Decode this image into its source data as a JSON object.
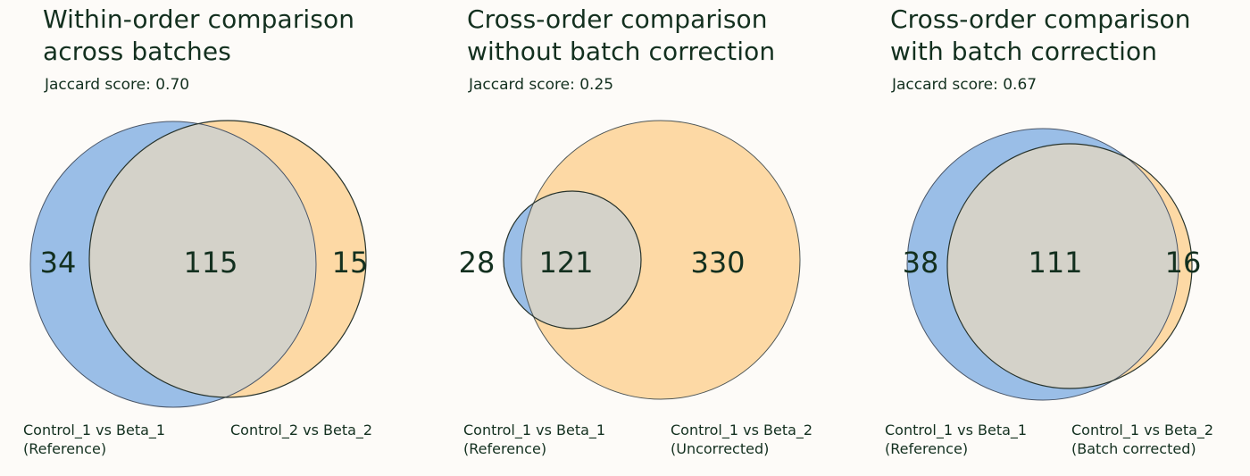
{
  "colors": {
    "reference": "#9abee7",
    "comparison": "#fdd9a5",
    "overlap": "#d4d2c9",
    "text": "#13301f",
    "background": "#fdfbf8"
  },
  "panels": [
    {
      "title_line1": "Within-order comparison",
      "title_line2": "across batches",
      "jaccard": "Jaccard score: 0.70",
      "left_only": "34",
      "overlap": "115",
      "right_only": "15",
      "left_label_line1": "Control_1 vs Beta_1",
      "left_label_line2": "(Reference)",
      "right_label_line1": "Control_2 vs Beta_2",
      "right_label_line2": ""
    },
    {
      "title_line1": "Cross-order comparison",
      "title_line2": "without batch correction",
      "jaccard": "Jaccard score: 0.25",
      "left_only": "28",
      "overlap": "121",
      "right_only": "330",
      "left_label_line1": "Control_1 vs Beta_1",
      "left_label_line2": "(Reference)",
      "right_label_line1": "Control_1 vs Beta_2",
      "right_label_line2": "(Uncorrected)"
    },
    {
      "title_line1": "Cross-order comparison",
      "title_line2": "with batch correction",
      "jaccard": "Jaccard score: 0.67",
      "left_only": "38",
      "overlap": "111",
      "right_only": "16",
      "left_label_line1": "Control_1 vs Beta_1",
      "left_label_line2": "(Reference)",
      "right_label_line1": "Control_1 vs Beta_2",
      "right_label_line2": "(Batch corrected)"
    }
  ]
}
